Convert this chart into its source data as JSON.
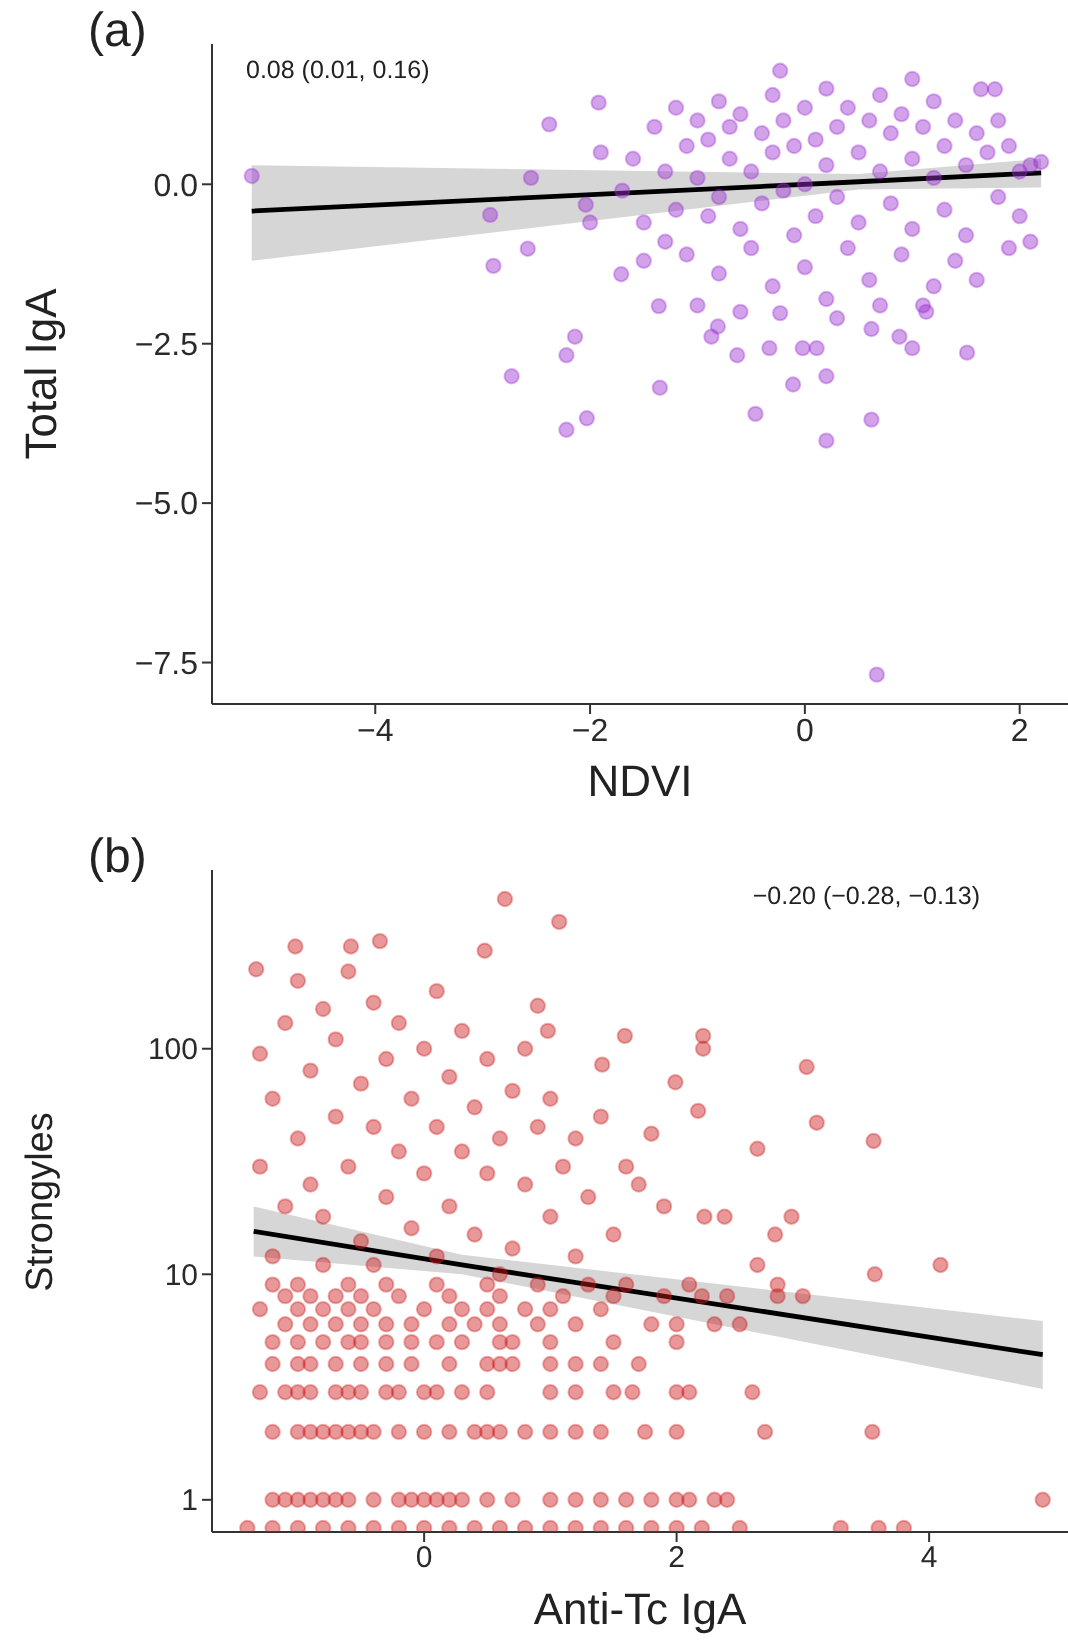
{
  "chart_data": [
    {
      "type": "scatter",
      "title": "(a)",
      "xlabel": "NDVI",
      "ylabel": "Total IgA",
      "annotations": [
        "0.08 (0.01, 0.16)"
      ],
      "xlim": [
        -5.52,
        2.45
      ],
      "ylim": [
        -8.15,
        2.2
      ],
      "xticks": [
        {
          "value": -4,
          "label": "−4"
        },
        {
          "value": -2,
          "label": "−2"
        },
        0,
        2
      ],
      "yticks": [
        {
          "value": -7.5,
          "label": "−7.5"
        },
        {
          "value": -5,
          "label": "−5.0"
        },
        {
          "value": -2.5,
          "label": "−2.5"
        },
        {
          "value": 0,
          "label": "0.0"
        }
      ],
      "series": [
        {
          "marker": "circle",
          "color": "#9b30d0",
          "x": [
            -5.15,
            -2.93,
            -2.9,
            -2.73,
            -2.58,
            -2.55,
            -2.38,
            -2.22,
            -2.14,
            -2.22,
            -2.03,
            -2.04,
            -1.92,
            -1.71,
            -1.35,
            -1.36,
            -0.46,
            0.2,
            0.62,
            -0.11,
            0.2,
            -0.63,
            -0.33,
            -0.02,
            0.11,
            1.51,
            1.0,
            0.62,
            0.88,
            -0.81,
            -0.87,
            -0.23,
            1.13,
            -0.23,
            1.0,
            1.77,
            1.64,
            0.67,
            -1.6,
            -1.5,
            -1.4,
            -1.3,
            -1.3,
            -1.2,
            -1.2,
            -1.1,
            -1.1,
            -1.0,
            -1.0,
            -0.9,
            -0.9,
            -0.8,
            -0.8,
            -0.8,
            -0.7,
            -0.7,
            -0.6,
            -0.6,
            -0.5,
            -0.5,
            -0.4,
            -0.4,
            -0.3,
            -0.3,
            -0.3,
            -0.2,
            -0.2,
            -0.1,
            -0.1,
            0.0,
            0.0,
            0.0,
            0.1,
            0.1,
            0.2,
            0.2,
            0.2,
            0.3,
            0.3,
            0.4,
            0.4,
            0.5,
            0.5,
            0.6,
            0.6,
            0.7,
            0.7,
            0.8,
            0.8,
            0.9,
            0.9,
            1.0,
            1.0,
            1.1,
            1.1,
            1.2,
            1.2,
            1.3,
            1.3,
            1.4,
            1.4,
            1.5,
            1.5,
            1.6,
            1.6,
            1.7,
            1.8,
            1.8,
            1.9,
            1.9,
            2.0,
            2.0,
            2.1,
            2.1,
            2.2,
            -1.7,
            -1.9,
            -2.0,
            -1.5,
            -1.0,
            -0.6,
            0.3,
            0.7,
            1.2
          ],
          "values": [
            0.13,
            -0.48,
            -1.28,
            -3.01,
            -1.01,
            0.1,
            0.94,
            -2.68,
            -2.39,
            -3.85,
            -3.67,
            -0.32,
            1.28,
            -1.41,
            -3.19,
            -1.91,
            -3.6,
            -4.02,
            -3.69,
            -3.14,
            -3.01,
            -2.68,
            -2.57,
            -2.57,
            -2.57,
            -2.64,
            -2.57,
            -2.27,
            -2.39,
            -2.23,
            -2.39,
            -2.02,
            -2.0,
            1.78,
            1.65,
            1.49,
            1.49,
            -7.69,
            0.4,
            -0.6,
            0.9,
            0.2,
            -0.9,
            1.2,
            -0.4,
            0.6,
            -1.1,
            0.1,
            1.0,
            -0.5,
            0.7,
            1.3,
            -0.2,
            -1.4,
            0.4,
            0.9,
            -0.7,
            1.1,
            0.2,
            -1.0,
            0.8,
            -0.3,
            1.4,
            0.5,
            -1.6,
            -0.1,
            1.0,
            0.6,
            -0.8,
            1.2,
            0.0,
            -1.3,
            0.7,
            -0.5,
            1.5,
            0.3,
            -1.8,
            -0.2,
            0.9,
            1.2,
            -1.0,
            0.5,
            -0.6,
            1.0,
            -1.5,
            0.2,
            1.4,
            -0.3,
            0.8,
            -1.1,
            1.1,
            0.4,
            -0.7,
            0.9,
            -1.9,
            0.1,
            1.3,
            -0.4,
            0.6,
            1.0,
            -1.2,
            0.3,
            -0.8,
            0.8,
            -1.5,
            0.5,
            -0.2,
            1.0,
            0.6,
            -1.0,
            0.2,
            -0.5,
            0.3,
            -0.9,
            0.35,
            -0.1,
            0.5,
            -0.6,
            -1.2,
            -1.9,
            -2.0,
            -2.1,
            -1.9,
            -1.6
          ]
        },
        {
          "type": "line",
          "color": "#000000",
          "x": [
            -5.15,
            0.5,
            2.2
          ],
          "values": [
            -0.42,
            0.04,
            0.18
          ],
          "lower": [
            -1.2,
            -0.08,
            -0.05
          ],
          "upper": [
            0.3,
            0.16,
            0.4
          ]
        }
      ]
    },
    {
      "type": "scatter",
      "title": "(b)",
      "xlabel": "Anti-Tc IgA",
      "ylabel": "Strongyles",
      "annotations": [
        "−0.20 (−0.28, −0.13)"
      ],
      "log": "y",
      "xlim": [
        -1.68,
        5.1
      ],
      "ylim": [
        0.72,
        620
      ],
      "xticks": [
        0,
        2,
        4
      ],
      "yticks": [
        1,
        10,
        100
      ],
      "series": [
        {
          "marker": "circle",
          "color": "#cc1a1a",
          "x": [
            -1.4,
            -1.2,
            -1.0,
            -0.8,
            -0.6,
            -0.4,
            -0.2,
            0,
            0.2,
            0.4,
            0.6,
            0.8,
            1.0,
            1.2,
            1.4,
            1.6,
            1.8,
            2.0,
            2.2,
            2.5,
            3.3,
            3.6,
            3.8,
            -1.2,
            -1.1,
            -1.0,
            -0.9,
            -0.8,
            -0.7,
            -0.6,
            -0.4,
            -0.2,
            -0.1,
            0,
            0.1,
            0.2,
            0.3,
            0.5,
            0.7,
            1.0,
            1.2,
            1.4,
            1.6,
            1.8,
            2.0,
            2.1,
            2.3,
            2.4,
            4.9,
            -1.2,
            -1.0,
            -0.9,
            -0.8,
            -0.7,
            -0.6,
            -0.5,
            -0.4,
            -0.2,
            0,
            0.2,
            0.4,
            0.5,
            0.6,
            0.8,
            1.0,
            1.2,
            1.4,
            1.75,
            2.0,
            2.7,
            3.55,
            -1.3,
            -1.1,
            -1.0,
            -0.9,
            -0.7,
            -0.6,
            -0.5,
            -0.3,
            -0.2,
            0,
            0.1,
            0.3,
            0.5,
            1.0,
            1.2,
            1.5,
            1.65,
            2.0,
            2.1,
            2.6,
            -1.2,
            -1.0,
            -0.9,
            -0.7,
            -0.5,
            -0.3,
            -0.1,
            0.2,
            0.5,
            0.6,
            0.7,
            1.0,
            1.2,
            1.4,
            1.7,
            -1.2,
            -1.0,
            -0.8,
            -0.6,
            -0.5,
            -0.3,
            -0.1,
            0.1,
            0.3,
            0.6,
            0.7,
            1.0,
            1.5,
            2.0,
            -1.1,
            -0.9,
            -0.7,
            -0.5,
            -0.3,
            -0.1,
            0.2,
            0.4,
            0.6,
            0.9,
            1.2,
            1.8,
            2.0,
            2.3,
            2.5,
            -1.3,
            -1.0,
            -0.8,
            -0.6,
            -0.4,
            0.0,
            0.3,
            0.5,
            0.8,
            1.0,
            1.4,
            -1.1,
            -0.9,
            -0.7,
            -0.5,
            -0.2,
            0.2,
            0.6,
            1.1,
            1.5,
            1.9,
            2.2,
            2.4,
            2.8,
            3.0,
            -1.2,
            -1.0,
            -0.6,
            -0.3,
            0.1,
            0.5,
            0.9,
            1.3,
            1.6,
            2.1,
            2.8,
            0.64,
            1.07,
            0.48,
            -0.58,
            -0.35,
            -1.02,
            -1.33,
            0.9,
            0.98,
            1.59,
            2.21,
            2.21,
            1.41,
            1.99,
            3.03,
            2.17,
            3.11,
            2.64,
            3.56,
            2.91,
            2.78,
            4.09,
            3.57,
            2.64,
            2.38,
            2.22,
            -1.3,
            -1.2,
            -1.1,
            -1.0,
            -1.0,
            -0.9,
            -0.9,
            -0.8,
            -0.8,
            -0.7,
            -0.7,
            -0.6,
            -0.6,
            -0.5,
            -0.5,
            -0.4,
            -0.4,
            -0.3,
            -0.3,
            -0.2,
            -0.2,
            -0.1,
            -0.1,
            0.0,
            0.0,
            0.1,
            0.1,
            0.2,
            0.2,
            0.3,
            0.3,
            0.4,
            0.4,
            0.5,
            0.5,
            0.6,
            0.7,
            0.7,
            0.8,
            0.8,
            0.9,
            1.0,
            1.0,
            1.1,
            1.2,
            1.3,
            1.4,
            1.5,
            1.6,
            1.7,
            1.8,
            1.9,
            -1.2,
            -1.1,
            -1.3,
            -0.8,
            -0.4,
            0.1,
            0.6,
            1.2
          ],
          "values": [
            0.75,
            0.75,
            0.75,
            0.75,
            0.75,
            0.75,
            0.75,
            0.75,
            0.75,
            0.75,
            0.75,
            0.75,
            0.75,
            0.75,
            0.75,
            0.75,
            0.75,
            0.75,
            0.75,
            0.75,
            0.75,
            0.75,
            0.75,
            1,
            1,
            1,
            1,
            1,
            1,
            1,
            1,
            1,
            1,
            1,
            1,
            1,
            1,
            1,
            1,
            1,
            1,
            1,
            1,
            1,
            1,
            1,
            1,
            1,
            1,
            2,
            2,
            2,
            2,
            2,
            2,
            2,
            2,
            2,
            2,
            2,
            2,
            2,
            2,
            2,
            2,
            2,
            2,
            2,
            2,
            2,
            2,
            3,
            3,
            3,
            3,
            3,
            3,
            3,
            3,
            3,
            3,
            3,
            3,
            3,
            3,
            3,
            3,
            3,
            3,
            3,
            3,
            4,
            4,
            4,
            4,
            4,
            4,
            4,
            4,
            4,
            4,
            4,
            4,
            4,
            4,
            4,
            5,
            5,
            5,
            5,
            5,
            5,
            5,
            5,
            5,
            5,
            5,
            5,
            5,
            5,
            6,
            6,
            6,
            6,
            6,
            6,
            6,
            6,
            6,
            6,
            6,
            6,
            6,
            6,
            6,
            7,
            7,
            7,
            7,
            7,
            7,
            7,
            7,
            7,
            7,
            7,
            8,
            8,
            8,
            8,
            8,
            8,
            8,
            8,
            8,
            8,
            8,
            8,
            8,
            8,
            9,
            9,
            9,
            9,
            9,
            9,
            9,
            9,
            9,
            9,
            9,
            461,
            365,
            272,
            284,
            300,
            284,
            225,
            155,
            120,
            114,
            114,
            100,
            85,
            71,
            83,
            53,
            47,
            36,
            39,
            18,
            15,
            11,
            10,
            11,
            18,
            18,
            95,
            60,
            130,
            40,
            200,
            25,
            80,
            150,
            18,
            50,
            110,
            30,
            220,
            70,
            14,
            45,
            160,
            22,
            90,
            35,
            130,
            60,
            16,
            100,
            28,
            45,
            180,
            20,
            75,
            35,
            120,
            55,
            15,
            90,
            28,
            40,
            65,
            13,
            25,
            100,
            45,
            18,
            60,
            30,
            40,
            22,
            50,
            15,
            30,
            25,
            42,
            20,
            12,
            20,
            30,
            11,
            11,
            12,
            10,
            12
          ]
        },
        {
          "type": "line",
          "color": "#000000",
          "x": [
            -1.35,
            0.3,
            4.9
          ],
          "values": [
            15.5,
            11,
            4.4
          ],
          "lower": [
            12,
            10,
            3.1
          ],
          "upper": [
            20,
            12.2,
            6.2
          ]
        }
      ]
    }
  ]
}
